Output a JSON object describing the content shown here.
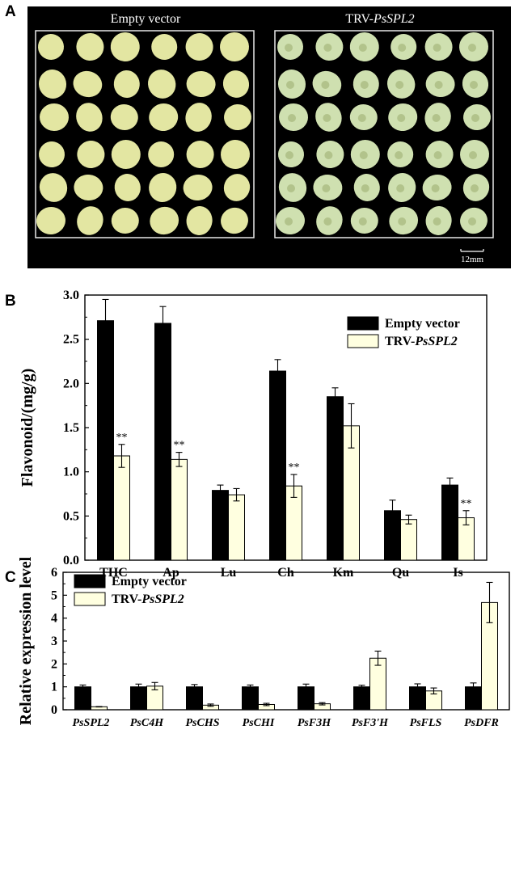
{
  "panel_a": {
    "letter": "A",
    "left_title_plain": "Empty vector",
    "right_title_prefix": "TRV-",
    "right_title_gene": "PsSPL2",
    "scale_label": "12mm",
    "colors": {
      "background": "#000000",
      "seed_control": "#e3e6a2",
      "seed_silenced": "#cfe0b0"
    }
  },
  "legend": {
    "control": "Empty vector",
    "treatment_prefix": "TRV-",
    "treatment_gene": "PsSPL2",
    "colors": {
      "control": "#000000",
      "treatment": "#ffffe0"
    }
  },
  "chart_data": [
    {
      "panel": "B",
      "type": "bar",
      "ylabel": "Flavonoid/(mg/g)",
      "ylim": [
        0,
        3.0
      ],
      "yticks": [
        "0.0",
        "0.5",
        "1.0",
        "1.5",
        "2.0",
        "2.5",
        "3.0"
      ],
      "categories": [
        "THC",
        "Ap",
        "Lu",
        "Ch",
        "Km",
        "Qu",
        "Is"
      ],
      "series": [
        {
          "name": "Empty vector",
          "values": [
            2.71,
            2.68,
            0.79,
            2.14,
            1.85,
            0.56,
            0.85
          ],
          "errors": [
            0.24,
            0.19,
            0.06,
            0.13,
            0.1,
            0.12,
            0.08
          ]
        },
        {
          "name": "TRV-PsSPL2",
          "values": [
            1.18,
            1.14,
            0.74,
            0.84,
            1.52,
            0.46,
            0.48
          ],
          "errors": [
            0.13,
            0.08,
            0.07,
            0.13,
            0.25,
            0.05,
            0.08
          ]
        }
      ],
      "significance": [
        "**",
        "**",
        "",
        "**",
        "",
        "",
        "**"
      ],
      "legend_position": "top-right"
    },
    {
      "panel": "C",
      "type": "bar",
      "ylabel": "Relative expression level",
      "ylim": [
        0,
        6
      ],
      "yticks": [
        "0",
        "1",
        "2",
        "3",
        "4",
        "5",
        "6"
      ],
      "categories": [
        "PsSPL2",
        "PsC4H",
        "PsCHS",
        "PsCHI",
        "PsF3H",
        "PsF3'H",
        "PsFLS",
        "PsDFR"
      ],
      "series": [
        {
          "name": "Empty vector",
          "values": [
            1.0,
            1.0,
            1.0,
            1.0,
            1.0,
            1.0,
            1.0,
            1.0
          ],
          "errors": [
            0.08,
            0.12,
            0.1,
            0.08,
            0.12,
            0.07,
            0.13,
            0.17
          ]
        },
        {
          "name": "TRV-PsSPL2",
          "values": [
            0.13,
            1.03,
            0.2,
            0.23,
            0.26,
            2.25,
            0.82,
            4.68
          ],
          "errors": [
            0.01,
            0.16,
            0.05,
            0.05,
            0.05,
            0.31,
            0.13,
            0.88
          ]
        }
      ],
      "legend_position": "top-left"
    }
  ]
}
